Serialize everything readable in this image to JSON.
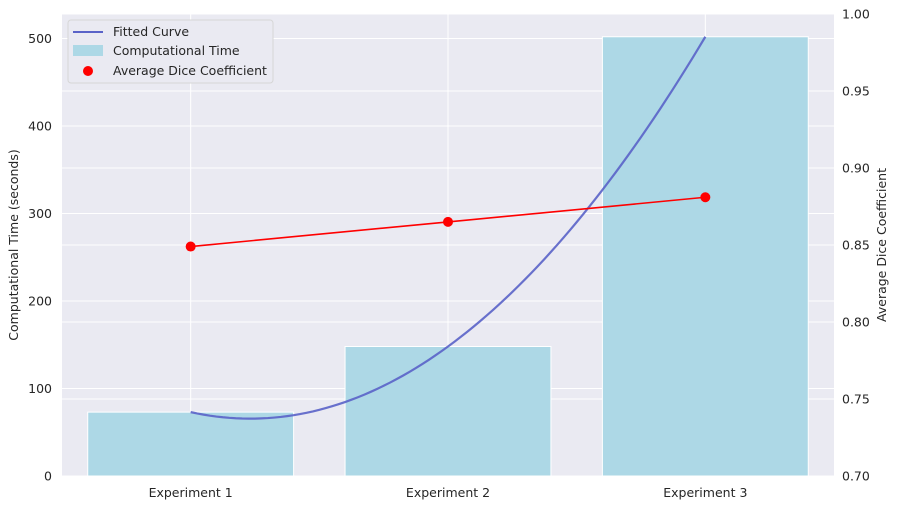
{
  "chart_data": {
    "type": "bar",
    "categories": [
      "Experiment 1",
      "Experiment 2",
      "Experiment 3"
    ],
    "series": [
      {
        "name": "Computational Time",
        "type": "bar",
        "axis": "left",
        "values": [
          73,
          148,
          502
        ],
        "color": "#add8e6"
      },
      {
        "name": "Average Dice Coefficient",
        "type": "line-scatter",
        "axis": "right",
        "values": [
          0.849,
          0.865,
          0.881
        ],
        "color": "#ff0000"
      },
      {
        "name": "Fitted Curve",
        "type": "curve",
        "axis": "left",
        "values": [
          73,
          148,
          502
        ],
        "color": "#5a63c8"
      }
    ],
    "ylabel": "Computational Time (seconds)",
    "y2label": "Average Dice Coefficient",
    "ylim": [
      0,
      528
    ],
    "y2lim": [
      0.7,
      1.0
    ],
    "yticks": [
      "0",
      "100",
      "200",
      "300",
      "400",
      "500"
    ],
    "y2ticks": [
      "0.70",
      "0.75",
      "0.80",
      "0.85",
      "0.90",
      "0.95",
      "1.00"
    ],
    "grid": true,
    "legend_position": "top-left",
    "legend": [
      "Fitted Curve",
      "Computational Time",
      "Average Dice Coefficient"
    ],
    "colors": {
      "background": "#eaeaf2",
      "grid": "#ffffff",
      "bar": "#add8e6",
      "dice": "#ff0000",
      "curve": "#5a63c8"
    }
  }
}
